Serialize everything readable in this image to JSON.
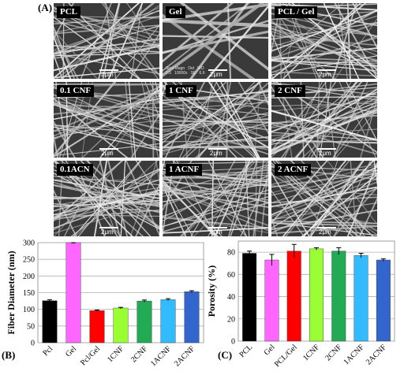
{
  "panel_labels": {
    "a": "(A)",
    "b": "(B)",
    "c": "(C)"
  },
  "sem_images": [
    {
      "label": "PCL",
      "scale": "2μm"
    },
    {
      "label": "Gel",
      "scale": "2μm",
      "meta": "Spot Magn   Det   WD\n2.5   10000x   SE   6.6",
      "meta_scale": "2 μm"
    },
    {
      "label": "PCL / Gel",
      "scale": "2μm"
    },
    {
      "label": "0.1 CNF",
      "scale": "2μm"
    },
    {
      "label": "1 CNF",
      "scale": "2μm"
    },
    {
      "label": "2 CNF",
      "scale": "2μm"
    },
    {
      "label": "0.1ACN",
      "scale": "2μm"
    },
    {
      "label": "1 ACNF",
      "scale": "2μm"
    },
    {
      "label": "2 ACNF",
      "scale": "2μm"
    }
  ],
  "chart_data": [
    {
      "type": "bar",
      "ylabel": "Fiber Diameter (nm)",
      "ylim": [
        0,
        300
      ],
      "yticks": [
        "0",
        "50",
        "100",
        "150",
        "200",
        "250",
        "300"
      ],
      "grid": true,
      "categories": [
        "Pcl",
        "Gel",
        "Pcl/Gel",
        "1CNF",
        "2CNF",
        "1ACNF",
        "2ACNF"
      ],
      "values": [
        126,
        300,
        96,
        104,
        125,
        129,
        153
      ],
      "errors": [
        3,
        3,
        2,
        2,
        3,
        3,
        3
      ],
      "colors": [
        "#000000",
        "#ff66ff",
        "#ff0000",
        "#99ff33",
        "#22aa55",
        "#33bbff",
        "#3366cc"
      ]
    },
    {
      "type": "bar",
      "ylabel": "Porosity (%)",
      "ylim": [
        0,
        90
      ],
      "yticks": [
        "0",
        "20",
        "40",
        "60",
        "80"
      ],
      "grid": true,
      "categories": [
        "PCL",
        "Gel",
        "PCL/Gel",
        "1CNF",
        "2CNF",
        "1ACNF",
        "2ACNF"
      ],
      "values": [
        79,
        73,
        81,
        83,
        81,
        77,
        73
      ],
      "errors": [
        2,
        5,
        6,
        1,
        3,
        2,
        1
      ],
      "colors": [
        "#000000",
        "#ff66ff",
        "#ff0000",
        "#99ff33",
        "#22aa55",
        "#33bbff",
        "#3366cc"
      ]
    }
  ]
}
